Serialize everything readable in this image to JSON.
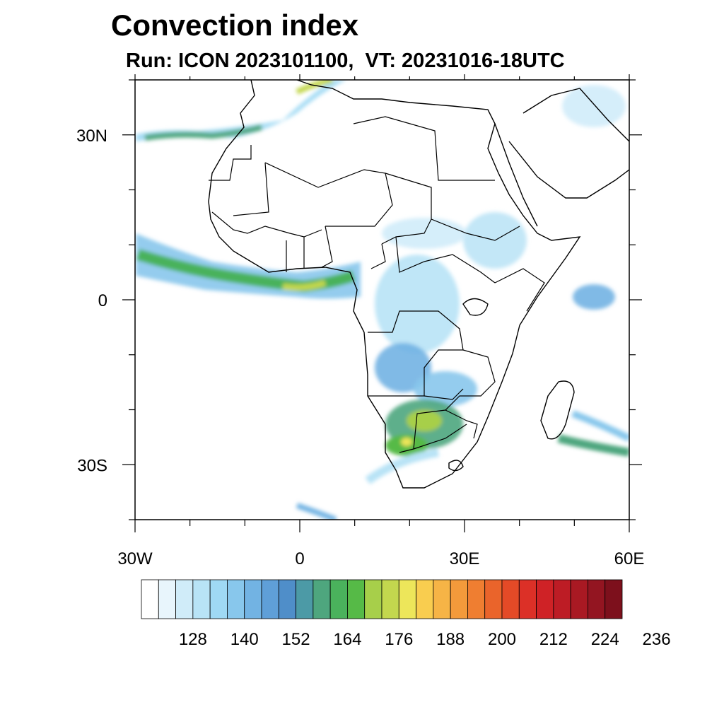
{
  "title": "Convection index",
  "subtitle": "Run: ICON 2023101100,  VT: 20231016-18UTC",
  "axes": {
    "lon_range": [
      -30,
      60
    ],
    "lat_range": [
      -40,
      40
    ],
    "x_labels": [
      {
        "lon": -30,
        "text": "30W"
      },
      {
        "lon": 0,
        "text": "0"
      },
      {
        "lon": 30,
        "text": "30E"
      },
      {
        "lon": 60,
        "text": "60E"
      }
    ],
    "y_labels": [
      {
        "lat": 30,
        "text": "30N"
      },
      {
        "lat": 0,
        "text": "0"
      },
      {
        "lat": -30,
        "text": "30S"
      }
    ],
    "minor_tick_step_deg": 10
  },
  "colorbar": {
    "colors": [
      "#ffffff",
      "#e8f5fc",
      "#d0ecf9",
      "#b8e3f6",
      "#9fd9f4",
      "#88c7ec",
      "#72b3e3",
      "#5f9fd8",
      "#4f8ec9",
      "#4c9aa6",
      "#4ea67e",
      "#4ab25c",
      "#56ba47",
      "#a7cf4a",
      "#c3d74e",
      "#ede65a",
      "#f9cd4f",
      "#f6b446",
      "#f39a3b",
      "#ef7e31",
      "#ea642b",
      "#e44a27",
      "#dc3027",
      "#cf2226",
      "#bd1c25",
      "#a91923",
      "#931521",
      "#7d101c"
    ],
    "labels": [
      "128",
      "140",
      "152",
      "164",
      "176",
      "188",
      "200",
      "212",
      "224",
      "236"
    ]
  }
}
